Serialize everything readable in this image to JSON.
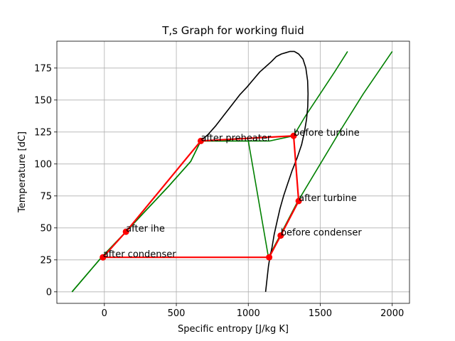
{
  "chart_data": {
    "type": "line",
    "title": "T,s Graph for working fluid",
    "xlabel": "Specific entropy [J/kg K]",
    "ylabel": "Temperature [dC]",
    "xlim": [
      -330,
      2120
    ],
    "ylim": [
      -9,
      196
    ],
    "xticks": [
      0,
      500,
      1000,
      1500,
      2000
    ],
    "yticks": [
      0,
      25,
      50,
      75,
      100,
      125,
      150,
      175
    ],
    "grid": true,
    "colors": {
      "saturation": "#000000",
      "isobar": "#008000",
      "cycle": "#ff0000"
    },
    "saturation_curve": {
      "x": [
        1120,
        1130,
        1140,
        1150,
        1165,
        1180,
        1200,
        1220,
        1245,
        1275,
        1305,
        1340,
        1370,
        1390,
        1405,
        1413,
        1415,
        1412,
        1400,
        1380,
        1350,
        1320,
        1290,
        1260,
        1230,
        1195,
        1160,
        1120,
        1080,
        1035,
        990,
        940,
        885,
        830,
        775,
        720,
        670
      ],
      "y": [
        0,
        10,
        20,
        27,
        35,
        45,
        55,
        65,
        75,
        85,
        95,
        105,
        115,
        125,
        135,
        145,
        155,
        165,
        175,
        182,
        186,
        188,
        188,
        187,
        186,
        184,
        180,
        176,
        172,
        166,
        160,
        154,
        146,
        138,
        130,
        123,
        118
      ]
    },
    "isobars": [
      {
        "x": [
          -225,
          -20,
          150,
          300,
          450,
          600,
          670,
          850,
          1000,
          1150,
          1315,
          1400,
          1500,
          1600,
          1690
        ],
        "y": [
          0,
          27,
          47,
          65,
          83,
          102,
          118,
          118,
          118,
          118,
          122,
          138,
          155,
          172,
          188
        ]
      },
      {
        "x": [
          -225,
          -20,
          150,
          300,
          450,
          600,
          670,
          850,
          1000,
          1140,
          1220,
          1340,
          1500,
          1650,
          1800,
          2000
        ],
        "y": [
          0,
          27,
          47,
          65,
          83,
          102,
          118,
          118,
          118,
          27,
          44,
          70,
          100,
          128,
          155,
          188
        ]
      }
    ],
    "cycle_points": [
      {
        "label": "after condenser",
        "x": -10,
        "y": 27
      },
      {
        "label": "after ihe",
        "x": 150,
        "y": 47
      },
      {
        "label": "after preheater",
        "x": 670,
        "y": 118
      },
      {
        "label": "before turbine",
        "x": 1315,
        "y": 122
      },
      {
        "label": "after turbine",
        "x": 1350,
        "y": 71
      },
      {
        "label": "before condenser",
        "x": 1225,
        "y": 44
      },
      {
        "label": "",
        "x": 1145,
        "y": 27
      },
      {
        "label": "",
        "x": -10,
        "y": 27
      }
    ]
  }
}
